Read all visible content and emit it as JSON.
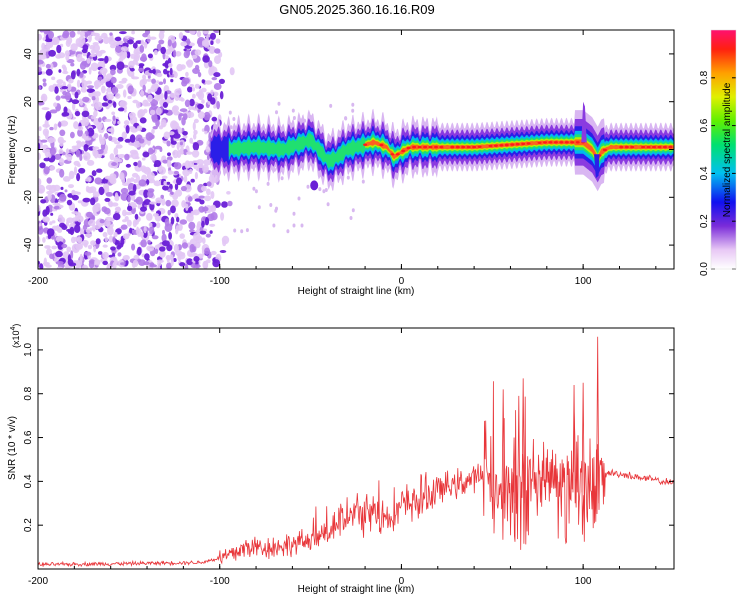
{
  "title": "GN05.2025.360.16.16.R09",
  "chart_data": [
    {
      "type": "heatmap",
      "name": "spectrogram",
      "xlabel": "Height of straight line (km)",
      "ylabel": "Frequency (Hz)",
      "xlim": [
        -200,
        150
      ],
      "ylim": [
        -50,
        50
      ],
      "xticks": [
        -200,
        -100,
        0,
        100
      ],
      "yticks": [
        -40,
        -20,
        0,
        20,
        40
      ],
      "noise_region_x": [
        -200,
        -100
      ],
      "signal_ridge": [
        {
          "x": -100,
          "y": 0
        },
        {
          "x": -80,
          "y": 1
        },
        {
          "x": -65,
          "y": 0
        },
        {
          "x": -50,
          "y": 4
        },
        {
          "x": -40,
          "y": -5
        },
        {
          "x": -35,
          "y": -3
        },
        {
          "x": -30,
          "y": 0
        },
        {
          "x": -25,
          "y": 1
        },
        {
          "x": -15,
          "y": 3
        },
        {
          "x": -8,
          "y": 1
        },
        {
          "x": -4,
          "y": -3
        },
        {
          "x": 0,
          "y": -1
        },
        {
          "x": 5,
          "y": 1
        },
        {
          "x": 20,
          "y": 1
        },
        {
          "x": 40,
          "y": 1
        },
        {
          "x": 60,
          "y": 2
        },
        {
          "x": 80,
          "y": 3
        },
        {
          "x": 95,
          "y": 3
        },
        {
          "x": 100,
          "y": 3
        },
        {
          "x": 105,
          "y": 0
        },
        {
          "x": 108,
          "y": -4
        },
        {
          "x": 110,
          "y": -1
        },
        {
          "x": 115,
          "y": 1
        },
        {
          "x": 150,
          "y": 1
        }
      ],
      "colorbar": {
        "label": "Normalized spectral amplitude",
        "range": [
          0,
          1
        ],
        "ticks": [
          0.0,
          0.2,
          0.4,
          0.6,
          0.8
        ],
        "tick_labels": [
          "0.0",
          "0.2",
          "0.4",
          "0.6",
          "0.8"
        ]
      }
    },
    {
      "type": "line",
      "name": "snr",
      "xlabel": "Height of straight line (km)",
      "ylabel": "SNR (10 * v/v)",
      "y_multiplier": "(x10",
      "y_multiplier_exp": "4",
      "y_multiplier_close": ")",
      "xlim": [
        -200,
        150
      ],
      "ylim": [
        0,
        1.1
      ],
      "xticks": [
        -200,
        -100,
        0,
        100
      ],
      "yticks": [
        0.2,
        0.4,
        0.6,
        0.8,
        1.0
      ],
      "color": "#e8363a",
      "series": [
        {
          "name": "SNR",
          "envelope": [
            {
              "x": -200,
              "y": 0.02
            },
            {
              "x": -150,
              "y": 0.025
            },
            {
              "x": -110,
              "y": 0.03
            },
            {
              "x": -95,
              "y": 0.06
            },
            {
              "x": -85,
              "y": 0.1
            },
            {
              "x": -70,
              "y": 0.1
            },
            {
              "x": -55,
              "y": 0.12
            },
            {
              "x": -45,
              "y": 0.14
            },
            {
              "x": -35,
              "y": 0.22
            },
            {
              "x": -20,
              "y": 0.26
            },
            {
              "x": -10,
              "y": 0.24
            },
            {
              "x": 0,
              "y": 0.28
            },
            {
              "x": 10,
              "y": 0.32
            },
            {
              "x": 20,
              "y": 0.36
            },
            {
              "x": 35,
              "y": 0.4
            },
            {
              "x": 45,
              "y": 0.42
            },
            {
              "x": 60,
              "y": 0.4
            },
            {
              "x": 75,
              "y": 0.42
            },
            {
              "x": 95,
              "y": 0.45
            },
            {
              "x": 110,
              "y": 0.42
            },
            {
              "x": 115,
              "y": 0.44
            },
            {
              "x": 130,
              "y": 0.42
            },
            {
              "x": 150,
              "y": 0.39
            }
          ]
        }
      ]
    }
  ]
}
